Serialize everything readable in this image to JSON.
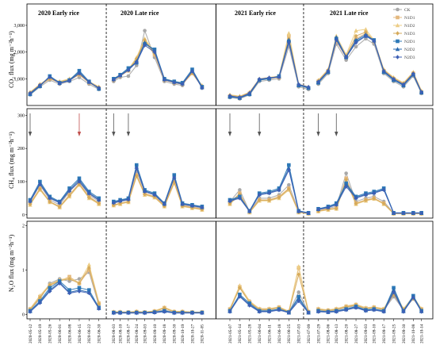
{
  "chart_data": {
    "type": "line",
    "series": [
      {
        "name": "CK",
        "color": "#a8a8a8",
        "marker": "circle"
      },
      {
        "name": "N1D1",
        "color": "#e4b87e",
        "marker": "square"
      },
      {
        "name": "N1D2",
        "color": "#eccd85",
        "marker": "triangle"
      },
      {
        "name": "N1D3",
        "color": "#d6aa5a",
        "marker": "diamond"
      },
      {
        "name": "N2D1",
        "color": "#2d79b7",
        "marker": "square"
      },
      {
        "name": "N2D2",
        "color": "#2a6ab0",
        "marker": "triangle"
      },
      {
        "name": "N2D3",
        "color": "#3d5fb5",
        "marker": "diamond"
      }
    ],
    "seasons": [
      "2020 Early rice",
      "2020 Late rice",
      "2021 Early rice",
      "2021 Late rice"
    ],
    "dates": [
      "2020-05-12",
      "2020-05-19",
      "2020-05-26",
      "2020-06-01",
      "2020-06-08",
      "2020-06-15",
      "2020-06-22",
      "2020-06-30",
      "2020-08-03",
      "2020-08-10",
      "2020-08-17",
      "2020-08-24",
      "2020-09-03",
      "2020-09-10",
      "2020-09-18",
      "2020-09-30",
      "2020-10-19",
      "2020-10-27",
      "2020-11-05",
      "2021-05-07",
      "2021-05-14",
      "2021-05-28",
      "2021-06-04",
      "2021-06-11",
      "2021-06-18",
      "2021-06-25",
      "2021-07-03",
      "2021-07-09",
      "2021-07-29",
      "2021-08-06",
      "2021-08-13",
      "2021-08-20",
      "2021-08-27",
      "2021-09-03",
      "2021-09-10",
      "2021-09-17",
      "2021-09-25",
      "2021-09-30",
      "2021-10-08",
      "2021-10-14"
    ],
    "panels": [
      {
        "ylabel": "CO₂ flux (mg m⁻²h⁻¹)",
        "yticks": [
          "1,000",
          "2,000",
          "3,000"
        ],
        "ylim": [
          0,
          3800
        ],
        "x": [
          0,
          0.6,
          1.2,
          1.8,
          2.4,
          3.0,
          3.6,
          4.2,
          5.1,
          5.5,
          6.0,
          6.5,
          7.0,
          7.6,
          8.2,
          8.8,
          9.3,
          9.9,
          10.5,
          12.2,
          12.8,
          13.4,
          14.0,
          14.6,
          15.2,
          15.8,
          16.4,
          17.0,
          17.6,
          18.2,
          18.7,
          19.3,
          19.9,
          20.5,
          21.0,
          21.6,
          22.2,
          22.8,
          23.4,
          23.9
        ],
        "values": [
          [
            400,
            700,
            950,
            800,
            900,
            1050,
            800,
            600,
            900,
            1050,
            1100,
            1500,
            2800,
            1800,
            900,
            800,
            750,
            1300,
            650,
            300,
            250,
            400,
            900,
            950,
            1000,
            2200,
            700,
            600,
            800,
            1200,
            2300,
            1700,
            2200,
            2500,
            2300,
            1200,
            900,
            700,
            1100,
            450
          ],
          [
            450,
            750,
            1000,
            850,
            950,
            1150,
            850,
            650,
            950,
            1100,
            1300,
            1700,
            2400,
            1900,
            950,
            850,
            800,
            1200,
            700,
            350,
            300,
            450,
            950,
            1000,
            1050,
            2600,
            750,
            650,
            900,
            1300,
            2400,
            1800,
            2500,
            2700,
            2400,
            1300,
            1000,
            800,
            1200,
            500
          ],
          [
            500,
            800,
            1050,
            900,
            1000,
            1200,
            900,
            700,
            1000,
            1150,
            1350,
            1800,
            2500,
            2000,
            1000,
            900,
            850,
            1250,
            750,
            400,
            350,
            500,
            1000,
            1050,
            1100,
            2700,
            800,
            700,
            950,
            1350,
            2600,
            1900,
            2800,
            2850,
            2450,
            1350,
            1050,
            850,
            1250,
            550
          ],
          [
            480,
            780,
            1000,
            880,
            970,
            1170,
            870,
            680,
            980,
            1120,
            1320,
            1750,
            2450,
            1950,
            980,
            880,
            830,
            1220,
            720,
            380,
            330,
            480,
            980,
            1030,
            1080,
            2500,
            780,
            680,
            920,
            1320,
            2500,
            1850,
            2600,
            2750,
            2420,
            1320,
            1020,
            820,
            1220,
            520
          ],
          [
            420,
            720,
            1100,
            850,
            950,
            1300,
            900,
            620,
            1000,
            1150,
            1400,
            1600,
            2300,
            2100,
            1000,
            900,
            850,
            1350,
            700,
            320,
            280,
            420,
            950,
            1000,
            1100,
            2400,
            750,
            650,
            850,
            1250,
            2500,
            1800,
            2400,
            2600,
            2450,
            1250,
            950,
            750,
            1150,
            480
          ],
          [
            440,
            740,
            1080,
            840,
            940,
            1250,
            880,
            640,
            980,
            1130,
            1350,
            1650,
            2350,
            2050,
            980,
            880,
            820,
            1300,
            680,
            340,
            290,
            440,
            970,
            1020,
            1080,
            2450,
            770,
            670,
            870,
            1270,
            2550,
            1820,
            2450,
            2650,
            2430,
            1270,
            970,
            770,
            1170,
            490
          ],
          [
            460,
            760,
            1060,
            830,
            930,
            1200,
            870,
            660,
            960,
            1110,
            1320,
            1620,
            2250,
            2000,
            960,
            860,
            800,
            1280,
            660,
            360,
            300,
            460,
            990,
            1040,
            1060,
            2350,
            790,
            690,
            890,
            1290,
            2450,
            1810,
            2350,
            2600,
            2410,
            1290,
            990,
            790,
            1190,
            500
          ]
        ]
      },
      {
        "ylabel": "CH₄ flux (mg m⁻²h⁻¹)",
        "yticks": [
          "0",
          "100",
          "200",
          "300"
        ],
        "ylim": [
          -10,
          320
        ],
        "x": [
          0,
          0.6,
          1.2,
          1.8,
          2.4,
          3.0,
          3.6,
          4.2,
          5.1,
          5.5,
          6.0,
          6.5,
          7.0,
          7.6,
          8.2,
          8.8,
          9.3,
          9.9,
          10.5,
          12.2,
          12.8,
          13.4,
          14.0,
          14.6,
          15.2,
          15.8,
          16.4,
          17.0,
          17.6,
          18.2,
          18.7,
          19.3,
          19.9,
          20.5,
          21.0,
          21.6,
          22.2,
          22.8,
          23.4,
          23.9
        ],
        "values": [
          [
            40,
            90,
            45,
            30,
            70,
            100,
            60,
            40,
            35,
            40,
            45,
            130,
            70,
            60,
            30,
            110,
            30,
            25,
            20,
            40,
            75,
            10,
            50,
            50,
            60,
            90,
            10,
            5,
            15,
            20,
            25,
            125,
            40,
            50,
            55,
            40,
            5,
            5,
            5,
            5
          ],
          [
            35,
            80,
            40,
            25,
            60,
            95,
            55,
            35,
            30,
            35,
            40,
            120,
            65,
            55,
            28,
            100,
            28,
            22,
            18,
            35,
            65,
            8,
            45,
            45,
            55,
            80,
            8,
            4,
            12,
            18,
            20,
            110,
            35,
            45,
            50,
            35,
            4,
            4,
            4,
            4
          ],
          [
            30,
            75,
            38,
            22,
            55,
            90,
            50,
            32,
            28,
            32,
            38,
            115,
            60,
            52,
            25,
            95,
            25,
            20,
            15,
            32,
            60,
            7,
            42,
            42,
            50,
            75,
            7,
            3,
            10,
            15,
            18,
            100,
            32,
            42,
            48,
            32,
            3,
            3,
            3,
            3
          ],
          [
            32,
            78,
            39,
            24,
            58,
            92,
            52,
            34,
            29,
            34,
            39,
            118,
            62,
            54,
            26,
            98,
            26,
            21,
            16,
            34,
            62,
            8,
            44,
            44,
            52,
            78,
            8,
            4,
            11,
            16,
            19,
            105,
            34,
            44,
            49,
            34,
            4,
            4,
            4,
            4
          ],
          [
            45,
            100,
            55,
            40,
            80,
            110,
            70,
            50,
            40,
            45,
            50,
            150,
            75,
            65,
            35,
            120,
            35,
            30,
            25,
            45,
            55,
            12,
            65,
            70,
            80,
            150,
            12,
            6,
            18,
            25,
            35,
            95,
            55,
            65,
            70,
            80,
            6,
            6,
            6,
            6
          ],
          [
            42,
            95,
            52,
            38,
            75,
            105,
            66,
            46,
            38,
            43,
            48,
            145,
            72,
            62,
            33,
            115,
            33,
            28,
            23,
            43,
            52,
            11,
            62,
            67,
            76,
            140,
            11,
            5,
            17,
            23,
            32,
            90,
            52,
            62,
            67,
            77,
            5,
            5,
            5,
            5
          ],
          [
            40,
            92,
            50,
            36,
            72,
            100,
            64,
            44,
            36,
            41,
            46,
            140,
            70,
            60,
            32,
            112,
            32,
            27,
            22,
            41,
            50,
            10,
            60,
            65,
            74,
            135,
            10,
            5,
            16,
            22,
            30,
            85,
            50,
            60,
            65,
            75,
            5,
            5,
            5,
            5
          ]
        ],
        "arrows_at": [
          0,
          3.0,
          5.1,
          6.0,
          12.2,
          14.0,
          17.6,
          18.7
        ]
      },
      {
        "ylabel": "N₂O flux (mg m⁻²h⁻¹)",
        "yticks": [
          "0",
          "1",
          "2"
        ],
        "ylim": [
          -0.1,
          2.1
        ],
        "x": [
          0,
          0.6,
          1.2,
          1.8,
          2.4,
          3.0,
          3.6,
          4.2,
          5.1,
          5.5,
          6.0,
          6.5,
          7.0,
          7.6,
          8.2,
          8.8,
          9.3,
          9.9,
          10.5,
          12.2,
          12.8,
          13.4,
          14.0,
          14.6,
          15.2,
          15.8,
          16.4,
          17.0,
          17.6,
          18.2,
          18.7,
          19.3,
          19.9,
          20.5,
          21.0,
          21.6,
          22.2,
          22.8,
          23.4,
          23.9
        ],
        "values": [
          [
            0.1,
            0.35,
            0.7,
            0.8,
            0.75,
            0.8,
            0.95,
            0.2,
            0.05,
            0.05,
            0.04,
            0.05,
            0.04,
            0.06,
            0.1,
            0.05,
            0.05,
            0.04,
            0.04,
            0.1,
            0.6,
            0.3,
            0.1,
            0.1,
            0.15,
            0.05,
            0.5,
            0.05,
            0.1,
            0.08,
            0.1,
            0.15,
            0.2,
            0.12,
            0.15,
            0.1,
            0.4,
            0.1,
            0.35,
            0.1
          ],
          [
            0.12,
            0.4,
            0.65,
            0.75,
            0.85,
            0.7,
            1.0,
            0.25,
            0.05,
            0.05,
            0.05,
            0.06,
            0.05,
            0.07,
            0.15,
            0.06,
            0.06,
            0.05,
            0.05,
            0.12,
            0.62,
            0.28,
            0.12,
            0.12,
            0.16,
            0.06,
            1.05,
            0.06,
            0.12,
            0.09,
            0.12,
            0.18,
            0.22,
            0.14,
            0.16,
            0.12,
            0.5,
            0.12,
            0.38,
            0.12
          ],
          [
            0.13,
            0.42,
            0.68,
            0.78,
            0.82,
            0.72,
            1.12,
            0.27,
            0.06,
            0.06,
            0.05,
            0.07,
            0.05,
            0.08,
            0.16,
            0.07,
            0.07,
            0.05,
            0.05,
            0.13,
            0.65,
            0.3,
            0.13,
            0.13,
            0.17,
            0.07,
            1.08,
            0.07,
            0.13,
            0.1,
            0.13,
            0.19,
            0.23,
            0.15,
            0.17,
            0.13,
            0.52,
            0.13,
            0.4,
            0.13
          ],
          [
            0.11,
            0.38,
            0.66,
            0.76,
            0.8,
            0.7,
            1.05,
            0.24,
            0.05,
            0.05,
            0.05,
            0.06,
            0.05,
            0.07,
            0.14,
            0.06,
            0.06,
            0.05,
            0.05,
            0.11,
            0.6,
            0.27,
            0.11,
            0.11,
            0.15,
            0.06,
            0.9,
            0.06,
            0.11,
            0.09,
            0.11,
            0.17,
            0.21,
            0.13,
            0.15,
            0.11,
            0.45,
            0.11,
            0.36,
            0.11
          ],
          [
            0.08,
            0.3,
            0.6,
            0.75,
            0.55,
            0.6,
            0.55,
            0.15,
            0.04,
            0.04,
            0.04,
            0.04,
            0.04,
            0.05,
            0.08,
            0.04,
            0.04,
            0.04,
            0.04,
            0.08,
            0.45,
            0.25,
            0.08,
            0.08,
            0.12,
            0.05,
            0.4,
            0.04,
            0.08,
            0.06,
            0.08,
            0.12,
            0.18,
            0.1,
            0.12,
            0.08,
            0.6,
            0.08,
            0.42,
            0.08
          ],
          [
            0.07,
            0.28,
            0.55,
            0.72,
            0.5,
            0.55,
            0.5,
            0.14,
            0.04,
            0.04,
            0.04,
            0.04,
            0.04,
            0.05,
            0.07,
            0.04,
            0.04,
            0.04,
            0.04,
            0.07,
            0.42,
            0.22,
            0.07,
            0.07,
            0.11,
            0.04,
            0.35,
            0.04,
            0.07,
            0.05,
            0.07,
            0.11,
            0.16,
            0.09,
            0.11,
            0.07,
            0.55,
            0.07,
            0.4,
            0.07
          ],
          [
            0.06,
            0.26,
            0.52,
            0.7,
            0.48,
            0.52,
            0.48,
            0.13,
            0.03,
            0.03,
            0.03,
            0.03,
            0.03,
            0.04,
            0.06,
            0.03,
            0.03,
            0.03,
            0.03,
            0.06,
            0.4,
            0.2,
            0.06,
            0.06,
            0.1,
            0.04,
            0.3,
            0.04,
            0.06,
            0.05,
            0.06,
            0.1,
            0.15,
            0.08,
            0.1,
            0.06,
            0.5,
            0.06,
            0.38,
            0.06
          ]
        ]
      }
    ]
  }
}
